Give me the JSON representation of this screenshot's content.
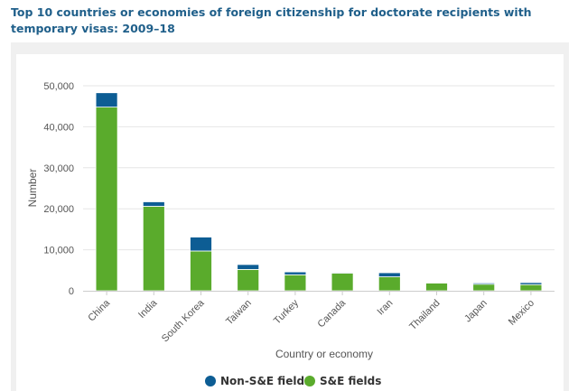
{
  "chart_data": {
    "type": "bar",
    "stacked": true,
    "title": "Top 10 countries or economies of foreign citizenship for doctorate recipients with temporary visas: 2009–18",
    "xlabel": "Country or economy",
    "ylabel": "Number",
    "ylim": [
      0,
      50000
    ],
    "yticks": [
      0,
      10000,
      20000,
      30000,
      40000,
      50000
    ],
    "ytick_labels": [
      "0",
      "10,000",
      "20,000",
      "30,000",
      "40,000",
      "50,000"
    ],
    "categories": [
      "China",
      "India",
      "South Korea",
      "Taiwan",
      "Turkey",
      "Canada",
      "Iran",
      "Thailand",
      "Japan",
      "Mexico"
    ],
    "series": [
      {
        "name": "S&E fields",
        "color": "#5aab2c",
        "values": [
          44800,
          20600,
          9700,
          5200,
          3900,
          4300,
          3400,
          1900,
          1600,
          1500
        ]
      },
      {
        "name": "Non-S&E fields",
        "color": "#0d5d94",
        "values": [
          3500,
          1100,
          3400,
          1200,
          700,
          200,
          1000,
          100,
          300,
          500
        ]
      }
    ],
    "legend": {
      "placement": "bottom",
      "order": [
        "Non-S&E fields",
        "S&E fields"
      ]
    }
  }
}
